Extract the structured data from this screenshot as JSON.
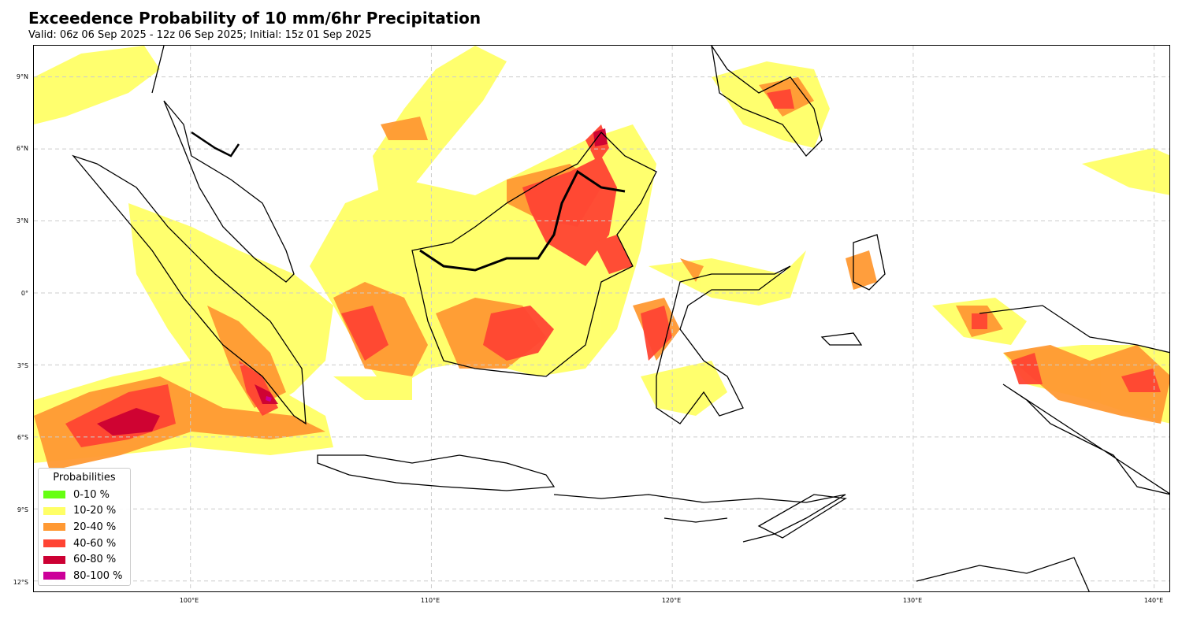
{
  "header": {
    "title": "Exceedence Probability of 10 mm/6hr Precipitation",
    "subtitle": "Valid: 06z 06 Sep 2025 - 12z 06 Sep 2025; Initial: 15z 01 Sep 2025"
  },
  "axes": {
    "lat_labels": [
      "9°N",
      "6°N",
      "3°N",
      "0°",
      "3°S",
      "6°S",
      "9°S",
      "12°S"
    ],
    "lon_labels": [
      "100°E",
      "110°E",
      "120°E",
      "130°E",
      "140°E"
    ],
    "lat_values": [
      9,
      6,
      3,
      0,
      -3,
      -6,
      -9,
      -12
    ],
    "lon_values": [
      100,
      110,
      120,
      130,
      140
    ],
    "lon_range": [
      93.5,
      140.7
    ],
    "lat_range": [
      -12.5,
      10.3
    ],
    "grid": true
  },
  "legend": {
    "title": "Probabilities",
    "placement": "lower-left",
    "items": [
      {
        "label": "0-10 %",
        "color": "#66ff11"
      },
      {
        "label": "10-20 %",
        "color": "#ffff66"
      },
      {
        "label": "20-40 %",
        "color": "#ff9933"
      },
      {
        "label": "40-60 %",
        "color": "#ff4433"
      },
      {
        "label": "60-80 %",
        "color": "#cc0033"
      },
      {
        "label": "80-100 %",
        "color": "#cc0099"
      }
    ]
  },
  "colors": {
    "coastline": "#000000",
    "gridline": "#cccccc"
  }
}
